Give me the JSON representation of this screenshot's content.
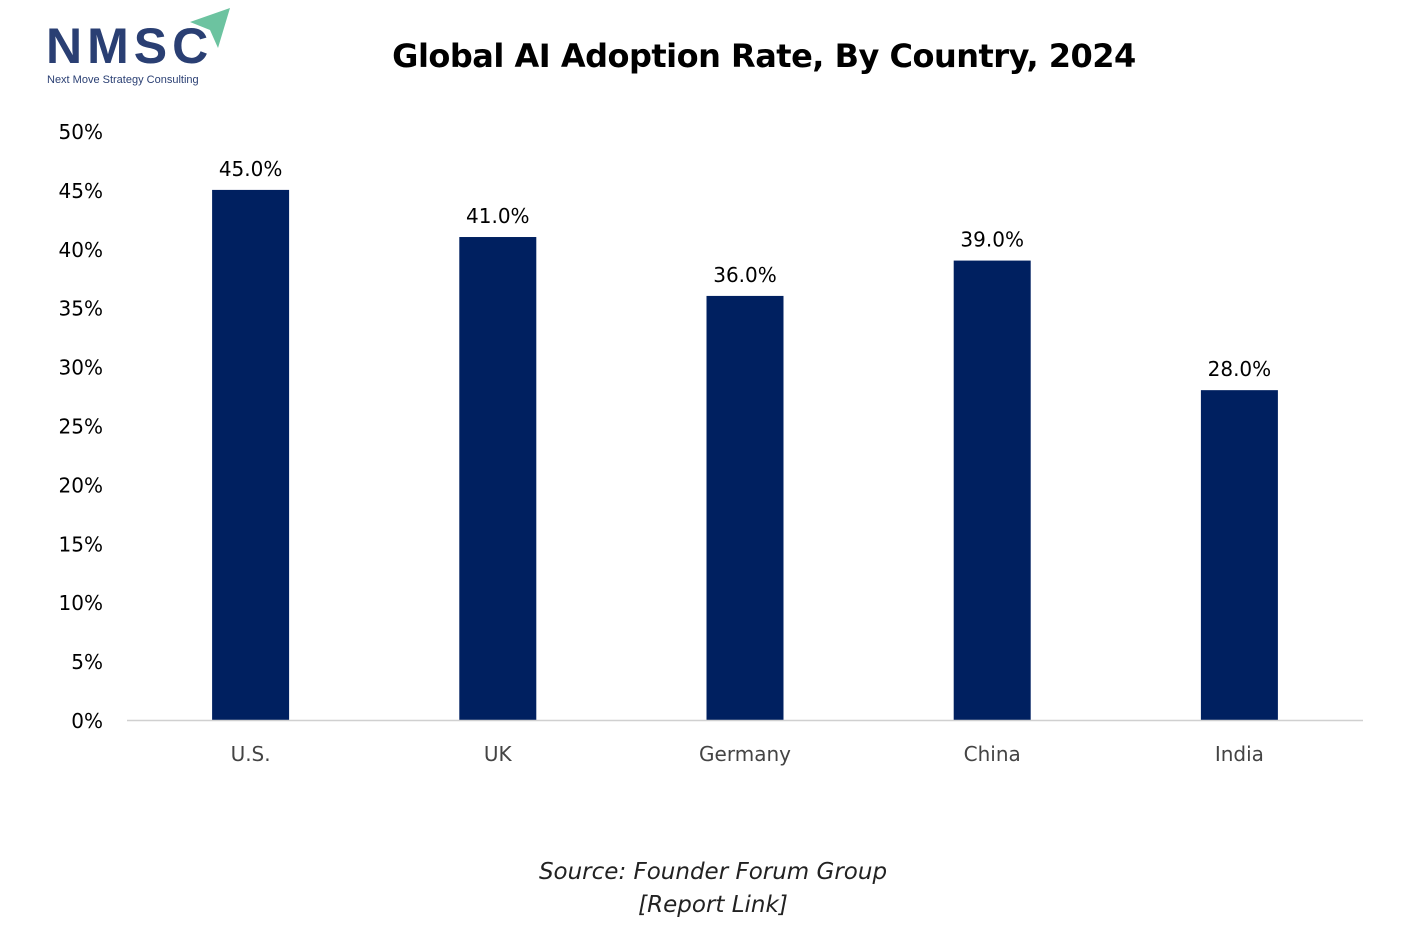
{
  "logo": {
    "name": "NMSC",
    "tagline": "Next Move Strategy Consulting"
  },
  "chart_data": {
    "type": "bar",
    "title": "Global AI Adoption Rate, By Country, 2024",
    "categories": [
      "U.S.",
      "UK",
      "Germany",
      "China",
      "India"
    ],
    "values": [
      45.0,
      41.0,
      36.0,
      39.0,
      28.0
    ],
    "data_labels": [
      "45.0%",
      "41.0%",
      "36.0%",
      "39.0%",
      "28.0%"
    ],
    "ylim": [
      0,
      50
    ],
    "yticks": [
      "0%",
      "5%",
      "10%",
      "15%",
      "20%",
      "25%",
      "30%",
      "35%",
      "40%",
      "45%",
      "50%"
    ],
    "xlabel": "",
    "ylabel": "",
    "grid": false,
    "legend": "none",
    "bar_color": "#002060"
  },
  "footer": {
    "source": "Source: Founder Forum Group",
    "link": "[Report Link]"
  }
}
